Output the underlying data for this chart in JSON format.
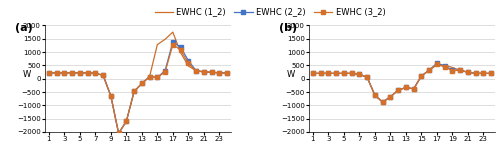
{
  "x": [
    1,
    2,
    3,
    4,
    5,
    6,
    7,
    8,
    9,
    10,
    11,
    12,
    13,
    14,
    15,
    16,
    17,
    18,
    19,
    20,
    21,
    22,
    23,
    24
  ],
  "winter": {
    "ewhc1": [
      220,
      220,
      220,
      220,
      220,
      220,
      200,
      130,
      -650,
      -2050,
      -1600,
      -480,
      -180,
      80,
      1280,
      1480,
      1750,
      980,
      480,
      300,
      260,
      240,
      220,
      215
    ],
    "ewhc2": [
      220,
      220,
      220,
      220,
      220,
      220,
      200,
      130,
      -650,
      -2050,
      -1600,
      -480,
      -180,
      80,
      50,
      300,
      1380,
      1180,
      680,
      300,
      260,
      240,
      220,
      215
    ],
    "ewhc3": [
      220,
      220,
      220,
      220,
      220,
      220,
      200,
      130,
      -650,
      -2050,
      -1600,
      -480,
      -180,
      80,
      50,
      250,
      1280,
      1080,
      580,
      280,
      260,
      240,
      220,
      215
    ]
  },
  "summer": {
    "ewhc1": [
      200,
      200,
      200,
      200,
      200,
      200,
      170,
      50,
      -620,
      -880,
      -680,
      -430,
      -330,
      -380,
      100,
      320,
      520,
      510,
      420,
      320,
      240,
      200,
      200,
      200
    ],
    "ewhc2": [
      200,
      200,
      200,
      200,
      200,
      200,
      170,
      50,
      -620,
      -880,
      -680,
      -430,
      -330,
      -380,
      100,
      320,
      580,
      480,
      320,
      320,
      240,
      200,
      200,
      200
    ],
    "ewhc3": [
      200,
      200,
      200,
      200,
      200,
      200,
      170,
      50,
      -620,
      -880,
      -680,
      -430,
      -330,
      -380,
      100,
      320,
      540,
      440,
      300,
      320,
      240,
      200,
      200,
      200
    ]
  },
  "legend_labels": [
    "EWHC (1_2)",
    "EWHC (2_2)",
    "EWHC (3_2)"
  ],
  "c1": "#cd6d2a",
  "c2": "#4472c4",
  "c3": "#d4702a",
  "ylim": [
    -2000,
    2000
  ],
  "yticks": [
    -2000,
    -1500,
    -1000,
    -500,
    0,
    500,
    1000,
    1500,
    2000
  ],
  "xticks": [
    1,
    3,
    5,
    7,
    9,
    11,
    13,
    15,
    17,
    19,
    21,
    23
  ],
  "ylabel": "W",
  "panel_labels": [
    "(a)",
    "(b)"
  ]
}
